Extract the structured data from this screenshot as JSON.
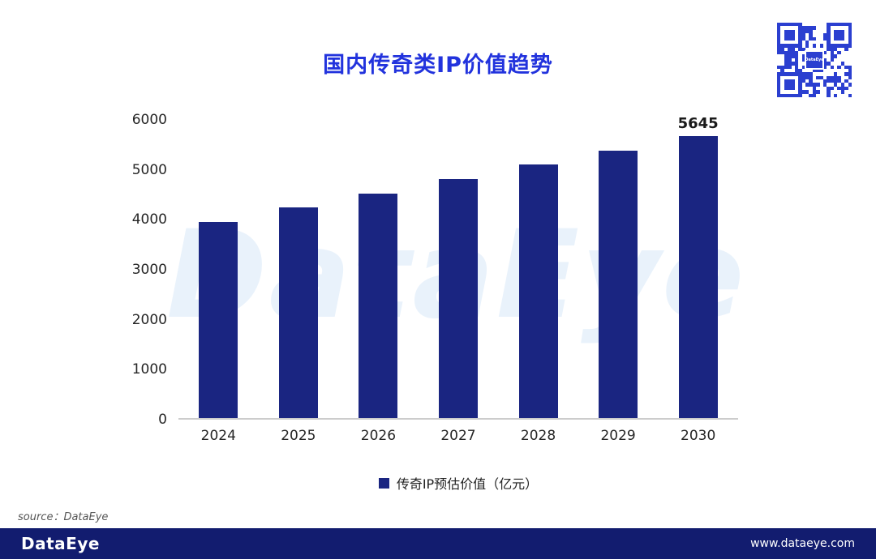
{
  "title": "国内传奇类IP价值趋势",
  "watermark": "DataEye",
  "qr_label": "DataEye",
  "source": "source：DataEye",
  "footer": {
    "brand": "DataEye",
    "url": "www.dataeye.com"
  },
  "colors": {
    "title": "#2233DD",
    "bar": "#1A2581",
    "footer_bg": "#121C6F",
    "watermark": "#E9F2FB",
    "qr": "#2B3FD0"
  },
  "chart_data": {
    "type": "bar",
    "title": "国内传奇类IP价值趋势",
    "categories": [
      "2024",
      "2025",
      "2026",
      "2027",
      "2028",
      "2029",
      "2030"
    ],
    "series": [
      {
        "name": "传奇IP预估价值（亿元）",
        "values": [
          3920,
          4210,
          4500,
          4780,
          5070,
          5350,
          5645
        ]
      }
    ],
    "legend": [
      "传奇IP预估价值（亿元）"
    ],
    "yticks": [
      0,
      1000,
      2000,
      3000,
      4000,
      5000,
      6000
    ],
    "ylim": [
      0,
      6000
    ],
    "value_labels": {
      "2030": "5645"
    },
    "grid": false,
    "legend_position": "bottom"
  }
}
